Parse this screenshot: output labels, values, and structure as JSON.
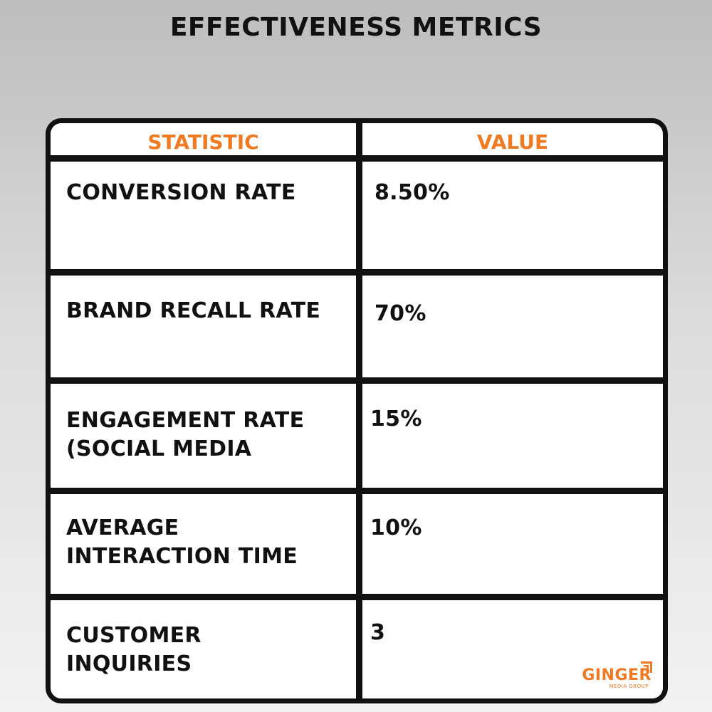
{
  "title": "EFFECTIVENESS METRICS",
  "chart_data": {
    "type": "table",
    "title": "EFFECTIVENESS METRICS",
    "columns": [
      "STATISTIC",
      "VALUE"
    ],
    "rows": [
      {
        "statistic": "CONVERSION RATE",
        "value": "8.50%"
      },
      {
        "statistic": "BRAND RECALL RATE",
        "value": "70%"
      },
      {
        "statistic": "ENGAGEMENT RATE\n(SOCIAL MEDIA",
        "value": "15%"
      },
      {
        "statistic": "AVERAGE\nINTERACTION TIME",
        "value": "10%"
      },
      {
        "statistic": "CUSTOMER\nINQUIRIES",
        "value": "3"
      }
    ]
  },
  "logo": {
    "name": "GINGER",
    "tagline": "MEDIA GROUP"
  },
  "colors": {
    "accent": "#f07a22",
    "border": "#111111",
    "text": "#111111"
  }
}
